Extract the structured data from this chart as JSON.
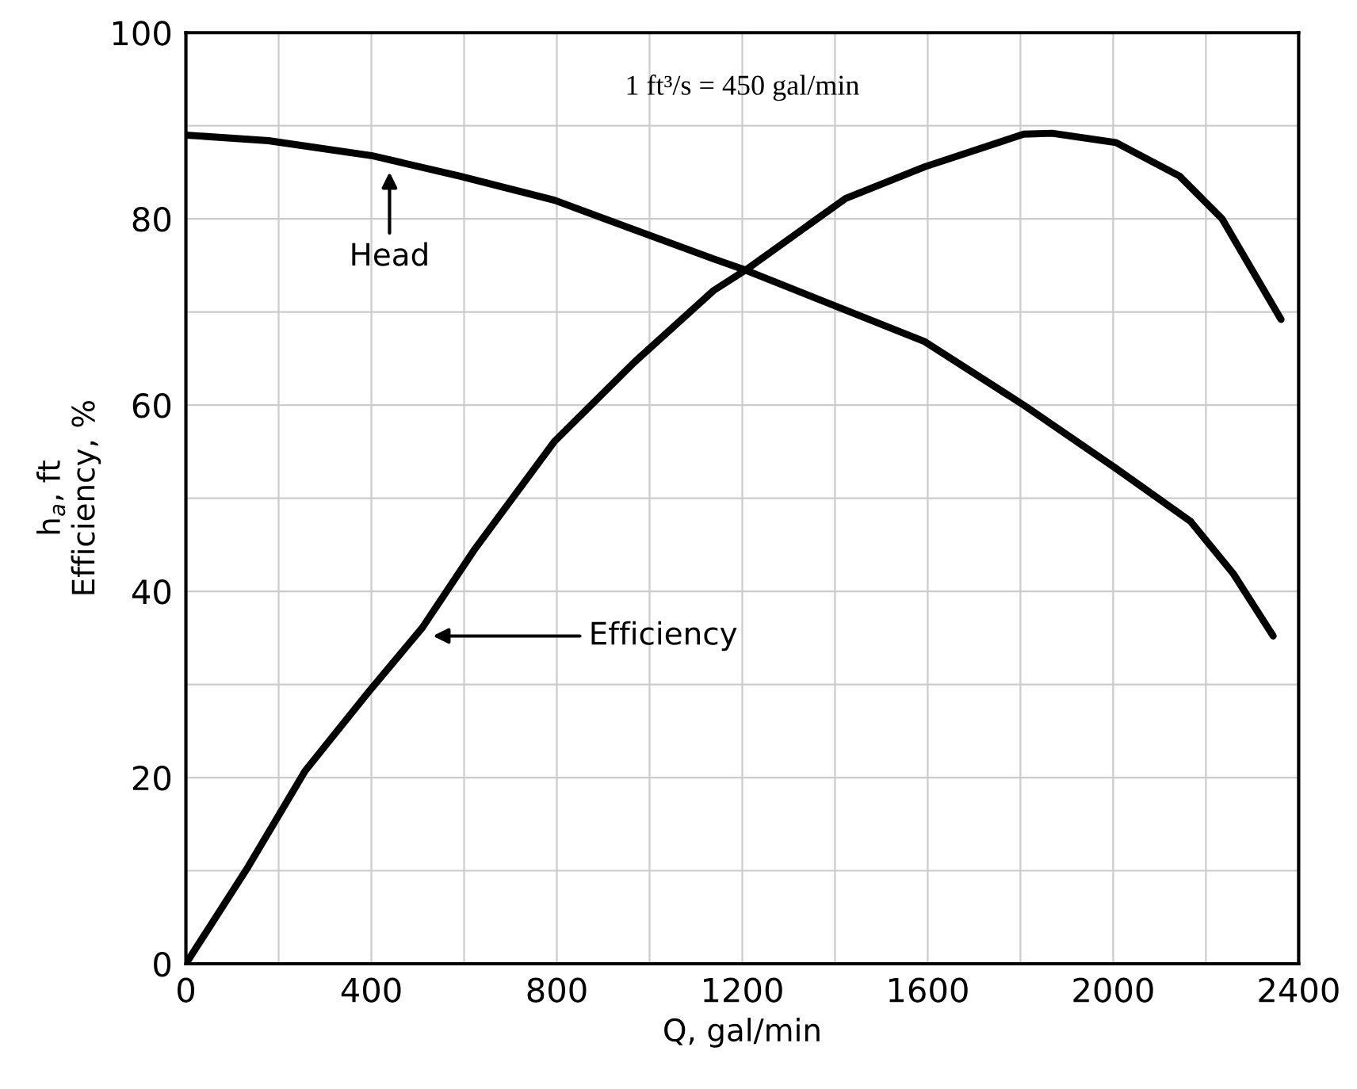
{
  "chart_data": {
    "type": "line",
    "xlabel": "Q, gal/min",
    "ylabel": "h$_{a}$, ft\nEfficiency, %",
    "series": [
      {
        "color": "#000000",
        "x": [
          0,
          178,
          400,
          590,
          795,
          1138,
          1207,
          1594,
          1807,
          2006,
          2167,
          2259,
          2345
        ],
        "values": [
          89.0,
          88.4,
          86.8,
          84.6,
          82.0,
          75.7,
          74.5,
          66.8,
          60.0,
          53.2,
          47.5,
          41.9,
          35.2
        ]
      },
      {
        "color": "#000000",
        "x": [
          0,
          134,
          257,
          394,
          510,
          624,
          795,
          967,
          1138,
          1207,
          1423,
          1594,
          1807,
          1868,
          2006,
          2143,
          2235,
          2362
        ],
        "values": [
          0,
          10.4,
          20.7,
          29.2,
          36.1,
          44.6,
          56.1,
          64.6,
          72.3,
          74.5,
          82.2,
          85.6,
          89.1,
          89.2,
          88.2,
          84.6,
          80.0,
          69.2
        ]
      }
    ],
    "annotations": [
      "Head",
      "Efficiency",
      "1 ft³/s = 450 gal/min"
    ],
    "xlim": [
      0,
      2400
    ],
    "ylim": [
      0,
      100
    ],
    "xticks": [
      0,
      {
        "value": 200,
        "label": null
      },
      400,
      {
        "value": 600,
        "label": null
      },
      800,
      {
        "value": 1000,
        "label": null
      },
      1200,
      {
        "value": 1400,
        "label": null
      },
      1600,
      {
        "value": 1800,
        "label": null
      },
      2000,
      {
        "value": 2200,
        "label": null
      },
      2400
    ],
    "yticks": [
      0,
      {
        "value": 10,
        "label": null
      },
      20,
      {
        "value": 30,
        "label": null
      },
      40,
      {
        "value": 50,
        "label": null
      },
      60,
      {
        "value": 70,
        "label": null
      },
      80,
      {
        "value": 90,
        "label": null
      },
      100
    ],
    "grid": true,
    "marker": "none",
    "line_style": "solid"
  }
}
